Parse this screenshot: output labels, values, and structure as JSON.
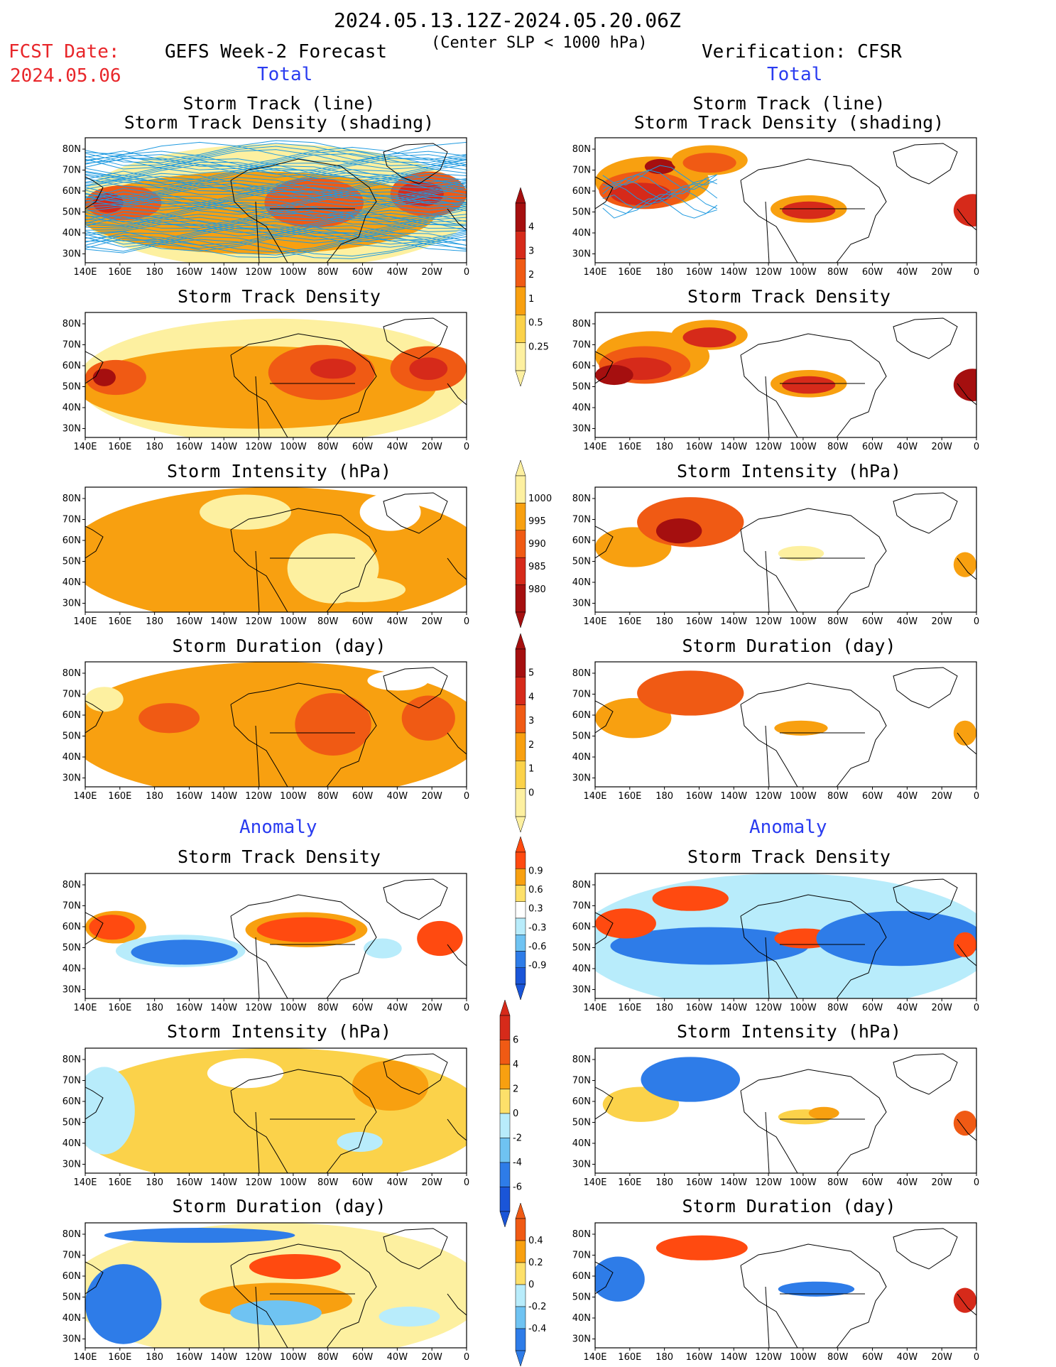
{
  "header": {
    "period": "2024.05.13.12Z-2024.05.20.06Z",
    "criterion": "(Center SLP < 1000 hPa)",
    "fcst_label": "FCST Date:",
    "fcst_date": "2024.05.06",
    "left_title": "GEFS Week-2 Forecast",
    "right_title": "Verification: CFSR",
    "total_label": "Total",
    "anomaly_label": "Anomaly"
  },
  "axes": {
    "x_ticks": [
      "140E",
      "160E",
      "180",
      "160W",
      "140W",
      "120W",
      "100W",
      "80W",
      "60W",
      "40W",
      "20W",
      "0"
    ],
    "y_ticks": [
      "80N",
      "70N",
      "60N",
      "50N",
      "40N",
      "30N"
    ]
  },
  "panels": {
    "row1": {
      "title_line1": "Storm Track (line)",
      "title_line2": "Storm Track Density (shading)"
    },
    "row2": {
      "title": "Storm Track Density"
    },
    "row3": {
      "title": "Storm Intensity (hPa)"
    },
    "row4": {
      "title": "Storm Duration (day)"
    },
    "row5": {
      "title": "Storm Track Density"
    },
    "row6": {
      "title": "Storm Intensity (hPa)"
    },
    "row7": {
      "title": "Storm Duration (day)"
    }
  },
  "colorbars": {
    "density": {
      "labels": [
        "4",
        "3",
        "2",
        "1",
        "0.5",
        "0.25"
      ],
      "colors": [
        "#a50f0f",
        "#d62a1a",
        "#f05a14",
        "#f8a010",
        "#fbd24a",
        "#fdf0a0"
      ]
    },
    "intensity": {
      "labels": [
        "1000",
        "995",
        "990",
        "985",
        "980"
      ],
      "colors": [
        "#fdf0a0",
        "#f8a010",
        "#f05a14",
        "#d62a1a",
        "#a50f0f"
      ]
    },
    "duration": {
      "labels": [
        "5",
        "4",
        "3",
        "2",
        "1",
        "0"
      ],
      "colors": [
        "#a50f0f",
        "#d62a1a",
        "#f05a14",
        "#f8a010",
        "#fbd24a",
        "#fdf0a0"
      ]
    },
    "density_anom": {
      "labels": [
        "0.9",
        "0.6",
        "0.3",
        "-0.3",
        "-0.6",
        "-0.9"
      ],
      "colors": [
        "#ff4a10",
        "#f8a010",
        "#fde06a",
        "#ffffff",
        "#b8ecfb",
        "#6fc3f2",
        "#2e7ce8",
        "#1a55d8"
      ]
    },
    "intensity_anom": {
      "labels": [
        "6",
        "4",
        "2",
        "0",
        "-2",
        "-4",
        "-6"
      ],
      "colors": [
        "#d62a1a",
        "#f05a14",
        "#f8a010",
        "#fde06a",
        "#b8ecfb",
        "#6fc3f2",
        "#2e7ce8",
        "#1a55d8"
      ]
    },
    "duration_anom": {
      "labels": [
        "0.4",
        "0.2",
        "0",
        "-0.2",
        "-0.4"
      ],
      "colors": [
        "#f05a14",
        "#f8a010",
        "#fde06a",
        "#b8ecfb",
        "#6fc3f2",
        "#2e7ce8"
      ]
    }
  },
  "colors": {
    "text_red": "#e8262a",
    "text_blue": "#2a3cf0",
    "track_line": "#1f9ae0"
  }
}
